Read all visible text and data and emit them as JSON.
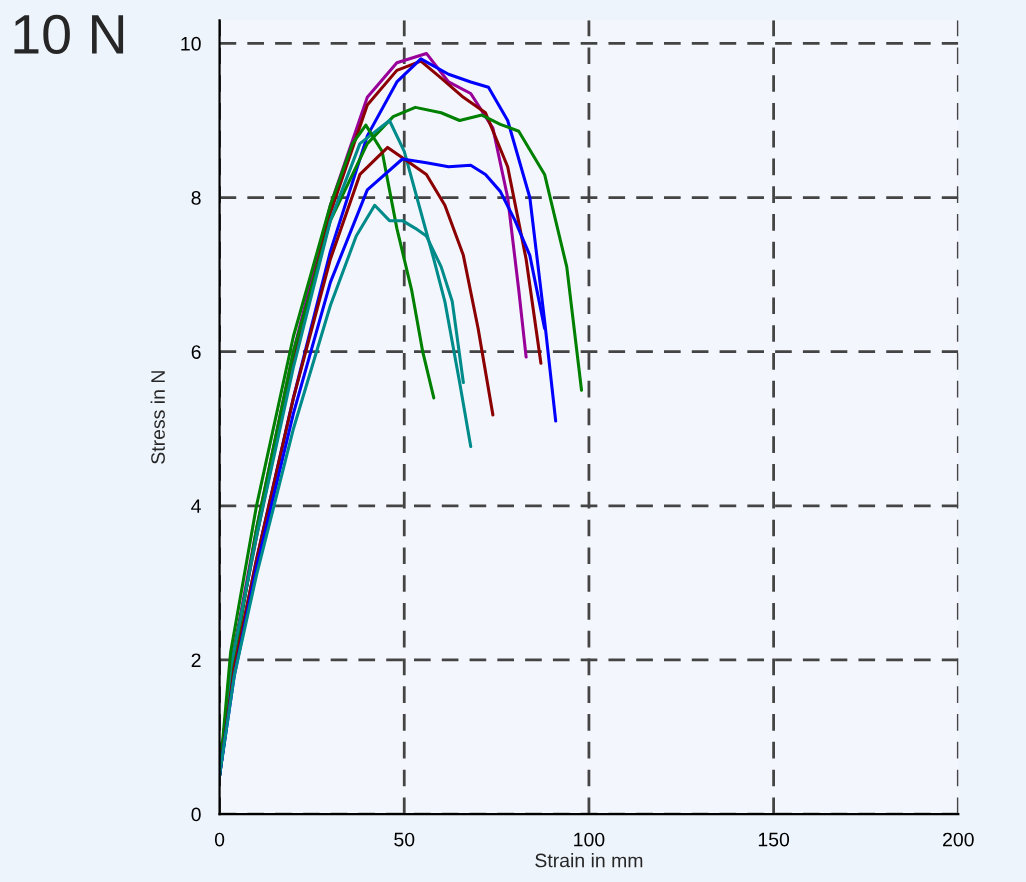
{
  "chart_data": {
    "type": "line",
    "title": "10 N",
    "xlabel": "Strain in mm",
    "ylabel": "Stress in N",
    "xlim": [
      0,
      200
    ],
    "ylim": [
      0,
      10.3
    ],
    "xticks": [
      0,
      50,
      100,
      150,
      200
    ],
    "yticks": [
      0,
      2,
      4,
      6,
      8,
      10
    ],
    "grid": true,
    "line_style": "solid",
    "marker": "none",
    "series": [
      {
        "color": "#990099",
        "x": [
          0,
          3,
          10,
          20,
          30,
          40,
          48,
          56,
          62,
          68,
          74,
          78,
          81,
          83
        ],
        "values": [
          0.5,
          1.9,
          3.7,
          6.0,
          7.9,
          9.3,
          9.75,
          9.87,
          9.5,
          9.35,
          8.9,
          8.0,
          6.8,
          5.93
        ]
      },
      {
        "color": "#8b0000",
        "x": [
          0,
          3,
          10,
          20,
          30,
          40,
          48,
          54.5,
          60,
          66,
          72,
          78,
          83,
          87
        ],
        "values": [
          0.5,
          1.9,
          3.6,
          5.9,
          7.8,
          9.2,
          9.65,
          9.77,
          9.55,
          9.3,
          9.1,
          8.4,
          7.2,
          5.85
        ]
      },
      {
        "color": "#0000ff",
        "x": [
          0,
          4,
          10,
          20,
          30,
          40,
          48,
          54.5,
          62,
          68,
          72.8,
          78,
          84,
          88,
          91
        ],
        "values": [
          0.5,
          1.9,
          3.3,
          5.4,
          7.3,
          8.8,
          9.5,
          9.8,
          9.6,
          9.5,
          9.43,
          9.0,
          8.0,
          6.4,
          5.1
        ]
      },
      {
        "color": "#008000",
        "x": [
          0,
          4,
          10,
          20,
          30,
          40,
          47,
          53,
          60,
          65,
          71,
          76,
          81,
          88,
          94,
          98
        ],
        "values": [
          0.5,
          2.0,
          3.7,
          6.0,
          7.7,
          8.7,
          9.05,
          9.17,
          9.1,
          9.0,
          9.07,
          8.95,
          8.86,
          8.3,
          7.1,
          5.5
        ]
      },
      {
        "color": "#008b8b",
        "x": [
          0,
          3,
          10,
          20,
          30,
          38,
          46,
          50,
          54,
          58,
          61,
          65,
          68
        ],
        "values": [
          0.5,
          1.9,
          3.6,
          5.8,
          7.7,
          8.7,
          9.0,
          8.6,
          7.9,
          7.2,
          6.65,
          5.6,
          4.77
        ]
      },
      {
        "color": "#008000",
        "x": [
          0,
          3,
          10,
          20,
          30,
          36,
          39.6,
          44,
          48,
          52,
          55,
          58
        ],
        "values": [
          0.5,
          2.1,
          4.0,
          6.2,
          7.9,
          8.7,
          8.94,
          8.6,
          7.6,
          6.8,
          6.0,
          5.4
        ]
      },
      {
        "color": "#8b0000",
        "x": [
          0,
          4,
          10,
          20,
          30,
          38,
          45.5,
          50,
          56,
          61,
          66,
          70,
          74
        ],
        "values": [
          0.5,
          1.9,
          3.3,
          5.4,
          7.2,
          8.3,
          8.65,
          8.5,
          8.3,
          7.9,
          7.25,
          6.3,
          5.18
        ]
      },
      {
        "color": "#0000ff",
        "x": [
          0,
          4,
          10,
          20,
          30,
          40,
          49.5,
          56,
          62,
          68,
          72,
          76,
          80,
          84,
          88
        ],
        "values": [
          0.5,
          1.8,
          3.2,
          5.2,
          6.9,
          8.1,
          8.5,
          8.45,
          8.4,
          8.42,
          8.3,
          8.08,
          7.7,
          7.25,
          6.3
        ]
      },
      {
        "color": "#008b8b",
        "x": [
          0,
          4,
          10,
          20,
          30,
          37,
          42,
          46,
          49.5,
          53,
          56,
          60,
          63,
          66
        ],
        "values": [
          0.5,
          1.8,
          3.1,
          5.0,
          6.6,
          7.5,
          7.9,
          7.7,
          7.7,
          7.6,
          7.5,
          7.1,
          6.65,
          5.6
        ]
      }
    ]
  }
}
